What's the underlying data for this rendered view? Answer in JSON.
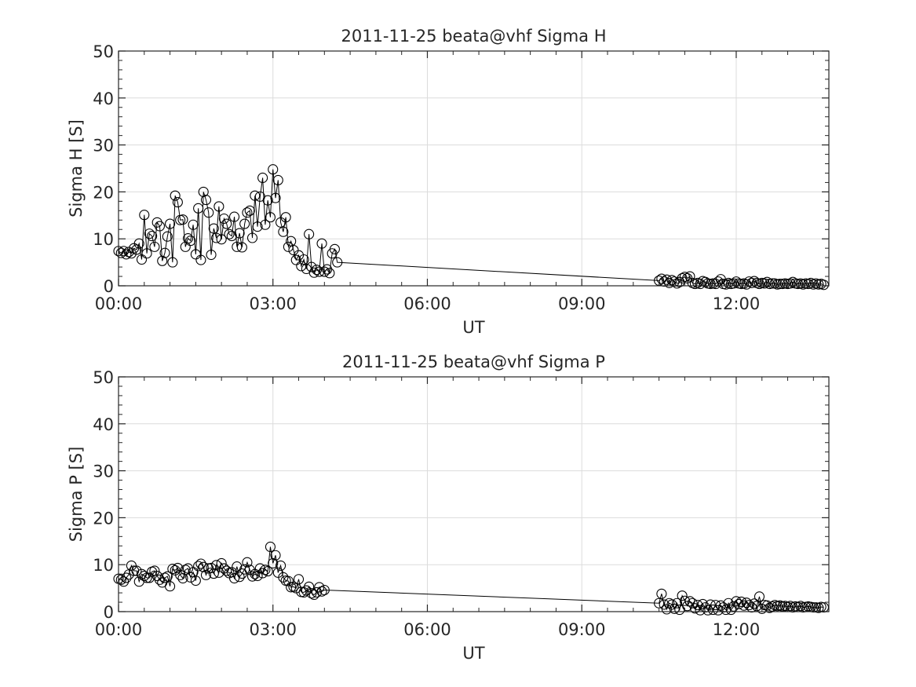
{
  "chart_data": [
    {
      "type": "line",
      "title": "2011-11-25  beata@vhf Sigma H",
      "xlabel": "UT",
      "ylabel": "Sigma H [S]",
      "x_unit": "hours UT",
      "xlim": [
        0,
        13.8
      ],
      "ylim": [
        0,
        50
      ],
      "x_ticks": [
        0,
        3,
        6,
        9,
        12
      ],
      "x_tick_labels": [
        "00:00",
        "03:00",
        "06:00",
        "09:00",
        "12:00"
      ],
      "y_ticks": [
        0,
        10,
        20,
        30,
        40,
        50
      ],
      "y_tick_labels": [
        "0",
        "10",
        "20",
        "30",
        "40",
        "50"
      ],
      "grid": true,
      "marker": "open-circle",
      "line_color": "#000000",
      "points": [
        [
          0.0,
          7.4
        ],
        [
          0.05,
          7.0
        ],
        [
          0.1,
          7.4
        ],
        [
          0.15,
          6.7
        ],
        [
          0.2,
          7.2
        ],
        [
          0.25,
          6.9
        ],
        [
          0.3,
          8.0
        ],
        [
          0.35,
          7.7
        ],
        [
          0.4,
          9.0
        ],
        [
          0.45,
          5.6
        ],
        [
          0.5,
          15.1
        ],
        [
          0.55,
          6.9
        ],
        [
          0.6,
          11.1
        ],
        [
          0.65,
          10.6
        ],
        [
          0.7,
          8.3
        ],
        [
          0.75,
          13.5
        ],
        [
          0.8,
          12.7
        ],
        [
          0.85,
          5.3
        ],
        [
          0.9,
          7.0
        ],
        [
          0.95,
          10.5
        ],
        [
          1.0,
          13.2
        ],
        [
          1.05,
          5.0
        ],
        [
          1.1,
          19.2
        ],
        [
          1.15,
          17.8
        ],
        [
          1.2,
          14.0
        ],
        [
          1.25,
          14.1
        ],
        [
          1.3,
          8.3
        ],
        [
          1.35,
          10.1
        ],
        [
          1.4,
          9.6
        ],
        [
          1.45,
          13.0
        ],
        [
          1.5,
          6.7
        ],
        [
          1.55,
          16.5
        ],
        [
          1.6,
          5.5
        ],
        [
          1.65,
          20.0
        ],
        [
          1.7,
          18.3
        ],
        [
          1.75,
          15.6
        ],
        [
          1.8,
          6.6
        ],
        [
          1.85,
          12.2
        ],
        [
          1.9,
          10.2
        ],
        [
          1.95,
          16.9
        ],
        [
          2.0,
          9.9
        ],
        [
          2.05,
          14.3
        ],
        [
          2.1,
          13.2
        ],
        [
          2.15,
          11.0
        ],
        [
          2.2,
          10.6
        ],
        [
          2.25,
          14.7
        ],
        [
          2.3,
          8.3
        ],
        [
          2.35,
          11.2
        ],
        [
          2.4,
          8.2
        ],
        [
          2.45,
          13.2
        ],
        [
          2.5,
          15.6
        ],
        [
          2.55,
          16.0
        ],
        [
          2.6,
          10.2
        ],
        [
          2.65,
          19.2
        ],
        [
          2.7,
          12.6
        ],
        [
          2.75,
          19.0
        ],
        [
          2.8,
          23.0
        ],
        [
          2.85,
          13.0
        ],
        [
          2.9,
          18.2
        ],
        [
          2.95,
          14.6
        ],
        [
          3.0,
          24.8
        ],
        [
          3.05,
          18.7
        ],
        [
          3.1,
          22.5
        ],
        [
          3.15,
          13.5
        ],
        [
          3.2,
          11.5
        ],
        [
          3.25,
          14.6
        ],
        [
          3.3,
          8.3
        ],
        [
          3.35,
          9.5
        ],
        [
          3.4,
          7.6
        ],
        [
          3.45,
          5.5
        ],
        [
          3.5,
          6.5
        ],
        [
          3.55,
          4.2
        ],
        [
          3.6,
          5.6
        ],
        [
          3.65,
          3.6
        ],
        [
          3.7,
          11.0
        ],
        [
          3.75,
          4.0
        ],
        [
          3.8,
          2.8
        ],
        [
          3.85,
          3.4
        ],
        [
          3.9,
          3.0
        ],
        [
          3.95,
          9.0
        ],
        [
          4.0,
          3.0
        ],
        [
          4.05,
          3.5
        ],
        [
          4.1,
          2.7
        ],
        [
          4.15,
          6.9
        ],
        [
          4.2,
          7.8
        ],
        [
          4.25,
          5.0
        ],
        [
          10.5,
          1.1
        ],
        [
          10.55,
          1.5
        ],
        [
          10.6,
          0.9
        ],
        [
          10.65,
          1.3
        ],
        [
          10.7,
          0.6
        ],
        [
          10.75,
          1.2
        ],
        [
          10.8,
          0.9
        ],
        [
          10.85,
          0.5
        ],
        [
          10.9,
          0.8
        ],
        [
          10.95,
          1.6
        ],
        [
          11.0,
          1.9
        ],
        [
          11.05,
          1.6
        ],
        [
          11.1,
          2.0
        ],
        [
          11.15,
          0.6
        ],
        [
          11.2,
          0.4
        ],
        [
          11.25,
          0.6
        ],
        [
          11.3,
          0.4
        ],
        [
          11.35,
          1.0
        ],
        [
          11.4,
          0.8
        ],
        [
          11.45,
          0.5
        ],
        [
          11.5,
          0.4
        ],
        [
          11.55,
          0.5
        ],
        [
          11.6,
          0.4
        ],
        [
          11.65,
          0.9
        ],
        [
          11.7,
          1.4
        ],
        [
          11.75,
          0.4
        ],
        [
          11.8,
          0.3
        ],
        [
          11.85,
          0.6
        ],
        [
          11.9,
          0.4
        ],
        [
          11.95,
          0.5
        ],
        [
          12.0,
          0.9
        ],
        [
          12.05,
          0.5
        ],
        [
          12.1,
          0.4
        ],
        [
          12.15,
          0.5
        ],
        [
          12.2,
          0.3
        ],
        [
          12.25,
          0.9
        ],
        [
          12.3,
          0.6
        ],
        [
          12.35,
          1.0
        ],
        [
          12.4,
          0.6
        ],
        [
          12.45,
          0.4
        ],
        [
          12.5,
          0.6
        ],
        [
          12.55,
          0.5
        ],
        [
          12.6,
          0.8
        ],
        [
          12.65,
          0.4
        ],
        [
          12.7,
          0.5
        ],
        [
          12.75,
          0.5
        ],
        [
          12.8,
          0.3
        ],
        [
          12.85,
          0.4
        ],
        [
          12.9,
          0.4
        ],
        [
          12.95,
          0.5
        ],
        [
          13.0,
          0.4
        ],
        [
          13.05,
          0.5
        ],
        [
          13.1,
          0.8
        ],
        [
          13.15,
          0.5
        ],
        [
          13.2,
          0.4
        ],
        [
          13.25,
          0.5
        ],
        [
          13.3,
          0.3
        ],
        [
          13.35,
          0.5
        ],
        [
          13.4,
          0.4
        ],
        [
          13.45,
          0.6
        ],
        [
          13.5,
          0.3
        ],
        [
          13.55,
          0.5
        ],
        [
          13.6,
          0.3
        ],
        [
          13.65,
          0.4
        ],
        [
          13.7,
          0.2
        ]
      ]
    },
    {
      "type": "line",
      "title": "2011-11-25  beata@vhf Sigma P",
      "xlabel": "UT",
      "ylabel": "Sigma P [S]",
      "x_unit": "hours UT",
      "xlim": [
        0,
        13.8
      ],
      "ylim": [
        0,
        50
      ],
      "x_ticks": [
        0,
        3,
        6,
        9,
        12
      ],
      "x_tick_labels": [
        "00:00",
        "03:00",
        "06:00",
        "09:00",
        "12:00"
      ],
      "y_ticks": [
        0,
        10,
        20,
        30,
        40,
        50
      ],
      "y_tick_labels": [
        "0",
        "10",
        "20",
        "30",
        "40",
        "50"
      ],
      "grid": true,
      "marker": "open-circle",
      "line_color": "#000000",
      "points": [
        [
          0.0,
          7.0
        ],
        [
          0.05,
          6.8
        ],
        [
          0.1,
          6.4
        ],
        [
          0.15,
          7.2
        ],
        [
          0.2,
          7.9
        ],
        [
          0.25,
          9.8
        ],
        [
          0.3,
          8.7
        ],
        [
          0.35,
          8.7
        ],
        [
          0.4,
          6.4
        ],
        [
          0.45,
          8.0
        ],
        [
          0.5,
          7.6
        ],
        [
          0.55,
          7.2
        ],
        [
          0.6,
          7.2
        ],
        [
          0.65,
          8.5
        ],
        [
          0.7,
          8.7
        ],
        [
          0.75,
          7.6
        ],
        [
          0.8,
          6.8
        ],
        [
          0.85,
          6.2
        ],
        [
          0.9,
          7.2
        ],
        [
          0.95,
          7.5
        ],
        [
          1.0,
          5.4
        ],
        [
          1.05,
          9.1
        ],
        [
          1.1,
          8.8
        ],
        [
          1.15,
          9.3
        ],
        [
          1.2,
          7.8
        ],
        [
          1.25,
          7.1
        ],
        [
          1.3,
          8.9
        ],
        [
          1.35,
          9.2
        ],
        [
          1.4,
          7.3
        ],
        [
          1.45,
          8.4
        ],
        [
          1.5,
          6.6
        ],
        [
          1.55,
          9.7
        ],
        [
          1.6,
          10.2
        ],
        [
          1.65,
          9.5
        ],
        [
          1.7,
          7.8
        ],
        [
          1.75,
          9.2
        ],
        [
          1.8,
          9.3
        ],
        [
          1.85,
          8.1
        ],
        [
          1.9,
          9.9
        ],
        [
          1.95,
          8.3
        ],
        [
          2.0,
          10.3
        ],
        [
          2.05,
          9.2
        ],
        [
          2.1,
          8.7
        ],
        [
          2.15,
          8.2
        ],
        [
          2.2,
          8.4
        ],
        [
          2.25,
          7.1
        ],
        [
          2.3,
          9.6
        ],
        [
          2.35,
          7.4
        ],
        [
          2.4,
          8.1
        ],
        [
          2.45,
          9.0
        ],
        [
          2.5,
          10.5
        ],
        [
          2.55,
          8.9
        ],
        [
          2.6,
          7.5
        ],
        [
          2.65,
          8.0
        ],
        [
          2.7,
          7.6
        ],
        [
          2.75,
          9.2
        ],
        [
          2.8,
          8.2
        ],
        [
          2.85,
          8.9
        ],
        [
          2.9,
          8.6
        ],
        [
          2.95,
          13.8
        ],
        [
          3.0,
          10.3
        ],
        [
          3.05,
          12.0
        ],
        [
          3.1,
          8.3
        ],
        [
          3.15,
          9.8
        ],
        [
          3.2,
          7.3
        ],
        [
          3.25,
          6.6
        ],
        [
          3.3,
          6.5
        ],
        [
          3.35,
          5.2
        ],
        [
          3.4,
          5.3
        ],
        [
          3.45,
          5.0
        ],
        [
          3.5,
          6.9
        ],
        [
          3.55,
          4.2
        ],
        [
          3.6,
          4.1
        ],
        [
          3.65,
          4.5
        ],
        [
          3.7,
          5.3
        ],
        [
          3.75,
          3.9
        ],
        [
          3.8,
          3.6
        ],
        [
          3.85,
          4.1
        ],
        [
          3.9,
          5.2
        ],
        [
          3.95,
          4.3
        ],
        [
          4.0,
          4.6
        ],
        [
          10.5,
          1.8
        ],
        [
          10.55,
          3.8
        ],
        [
          10.6,
          1.5
        ],
        [
          10.65,
          0.5
        ],
        [
          10.7,
          1.8
        ],
        [
          10.75,
          1.5
        ],
        [
          10.8,
          0.6
        ],
        [
          10.85,
          1.8
        ],
        [
          10.9,
          0.4
        ],
        [
          10.95,
          3.4
        ],
        [
          11.0,
          2.3
        ],
        [
          11.05,
          1.2
        ],
        [
          11.1,
          2.2
        ],
        [
          11.15,
          1.8
        ],
        [
          11.2,
          0.7
        ],
        [
          11.25,
          1.4
        ],
        [
          11.3,
          0.3
        ],
        [
          11.35,
          1.6
        ],
        [
          11.4,
          0.9
        ],
        [
          11.45,
          0.3
        ],
        [
          11.5,
          1.5
        ],
        [
          11.55,
          0.4
        ],
        [
          11.6,
          1.4
        ],
        [
          11.65,
          0.3
        ],
        [
          11.7,
          1.3
        ],
        [
          11.75,
          0.9
        ],
        [
          11.8,
          0.4
        ],
        [
          11.85,
          1.8
        ],
        [
          11.9,
          0.4
        ],
        [
          11.95,
          1.1
        ],
        [
          12.0,
          2.2
        ],
        [
          12.05,
          1.6
        ],
        [
          12.1,
          2.1
        ],
        [
          12.15,
          1.3
        ],
        [
          12.2,
          1.9
        ],
        [
          12.25,
          1.4
        ],
        [
          12.3,
          0.9
        ],
        [
          12.35,
          1.7
        ],
        [
          12.4,
          1.2
        ],
        [
          12.45,
          3.2
        ],
        [
          12.5,
          0.6
        ],
        [
          12.55,
          1.4
        ],
        [
          12.6,
          1.3
        ],
        [
          12.65,
          0.8
        ],
        [
          12.7,
          1.1
        ],
        [
          12.75,
          1.4
        ],
        [
          12.8,
          1.2
        ],
        [
          12.85,
          1.3
        ],
        [
          12.9,
          1.1
        ],
        [
          12.95,
          1.2
        ],
        [
          13.0,
          1.0
        ],
        [
          13.05,
          1.2
        ],
        [
          13.1,
          0.9
        ],
        [
          13.15,
          1.1
        ],
        [
          13.2,
          1.0
        ],
        [
          13.25,
          1.2
        ],
        [
          13.3,
          0.9
        ],
        [
          13.35,
          1.0
        ],
        [
          13.4,
          1.1
        ],
        [
          13.45,
          1.0
        ],
        [
          13.5,
          0.9
        ],
        [
          13.55,
          0.9
        ],
        [
          13.6,
          0.8
        ],
        [
          13.65,
          1.0
        ],
        [
          13.7,
          0.9
        ]
      ]
    }
  ]
}
